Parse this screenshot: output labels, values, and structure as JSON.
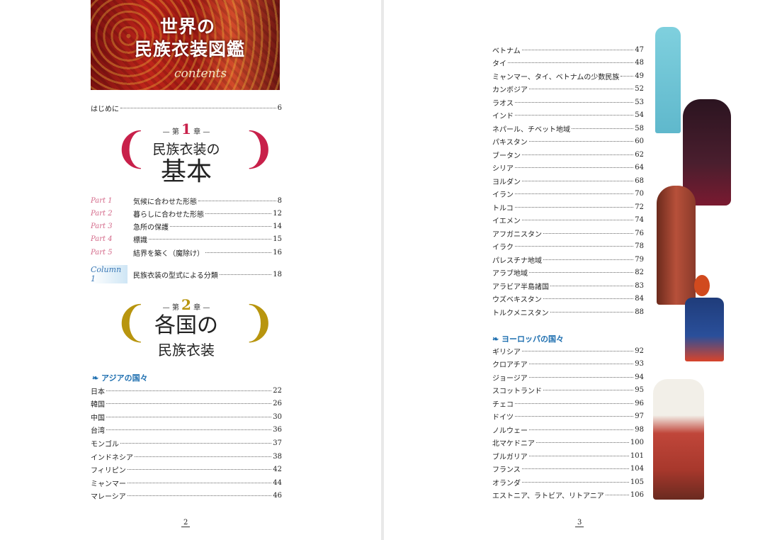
{
  "header": {
    "title_line1": "世界の",
    "title_line2": "民族衣装図鑑",
    "subtitle": "contents"
  },
  "intro": {
    "label": "はじめに",
    "page": "6"
  },
  "chapter1": {
    "prefix": "第",
    "number": "1",
    "suffix": "章",
    "title_line1": "民族衣装の",
    "title_line2": "基本",
    "color": "#c8204a"
  },
  "parts": [
    {
      "tag": "Part 1",
      "label": "気候に合わせた形態",
      "page": "8"
    },
    {
      "tag": "Part 2",
      "label": "暮らしに合わせた形態",
      "page": "12"
    },
    {
      "tag": "Part 3",
      "label": "急所の保護",
      "page": "14"
    },
    {
      "tag": "Part 4",
      "label": "標識",
      "page": "15"
    },
    {
      "tag": "Part 5",
      "label": "結界を築く（魔除け）",
      "page": "16"
    }
  ],
  "column1": {
    "tag": "Column 1",
    "label": "民族衣装の型式による分類",
    "page": "18"
  },
  "chapter2": {
    "prefix": "第",
    "number": "2",
    "suffix": "章",
    "title_line1": "各国の",
    "title_line2": "民族衣装",
    "color": "#b8950e"
  },
  "asia": {
    "heading": "アジアの国々",
    "items_left": [
      {
        "label": "日本",
        "page": "22"
      },
      {
        "label": "韓国",
        "page": "26"
      },
      {
        "label": "中国",
        "page": "30"
      },
      {
        "label": "台湾",
        "page": "36"
      },
      {
        "label": "モンゴル",
        "page": "37"
      },
      {
        "label": "インドネシア",
        "page": "38"
      },
      {
        "label": "フィリピン",
        "page": "42"
      },
      {
        "label": "ミャンマー",
        "page": "44"
      },
      {
        "label": "マレーシア",
        "page": "46"
      }
    ],
    "items_right": [
      {
        "label": "ベトナム",
        "page": "47"
      },
      {
        "label": "タイ",
        "page": "48"
      },
      {
        "label": "ミャンマー、タイ、ベトナムの少数民族",
        "page": "49"
      },
      {
        "label": "カンボジア",
        "page": "52"
      },
      {
        "label": "ラオス",
        "page": "53"
      },
      {
        "label": "インド",
        "page": "54"
      },
      {
        "label": "ネパール、チベット地域",
        "page": "58"
      },
      {
        "label": "パキスタン",
        "page": "60"
      },
      {
        "label": "ブータン",
        "page": "62"
      },
      {
        "label": "シリア",
        "page": "64"
      },
      {
        "label": "ヨルダン",
        "page": "68"
      },
      {
        "label": "イラン",
        "page": "70"
      },
      {
        "label": "トルコ",
        "page": "72"
      },
      {
        "label": "イエメン",
        "page": "74"
      },
      {
        "label": "アフガニスタン",
        "page": "76"
      },
      {
        "label": "イラク",
        "page": "78"
      },
      {
        "label": "パレスチナ地域",
        "page": "79"
      },
      {
        "label": "アラブ地域",
        "page": "82"
      },
      {
        "label": "アラビア半島諸国",
        "page": "83"
      },
      {
        "label": "ウズベキスタン",
        "page": "84"
      },
      {
        "label": "トルクメニスタン",
        "page": "88"
      }
    ]
  },
  "europe": {
    "heading": "ヨーロッパの国々",
    "items": [
      {
        "label": "ギリシア",
        "page": "92"
      },
      {
        "label": "クロアチア",
        "page": "93"
      },
      {
        "label": "ジョージア",
        "page": "94"
      },
      {
        "label": "スコットランド",
        "page": "95"
      },
      {
        "label": "チェコ",
        "page": "96"
      },
      {
        "label": "ドイツ",
        "page": "97"
      },
      {
        "label": "ノルウェー",
        "page": "98"
      },
      {
        "label": "北マケドニア",
        "page": "100"
      },
      {
        "label": "ブルガリア",
        "page": "101"
      },
      {
        "label": "フランス",
        "page": "104"
      },
      {
        "label": "オランダ",
        "page": "105"
      },
      {
        "label": "エストニア、ラトビア、リトアニア",
        "page": "106"
      }
    ]
  },
  "page_numbers": {
    "left": "2",
    "right": "3"
  }
}
